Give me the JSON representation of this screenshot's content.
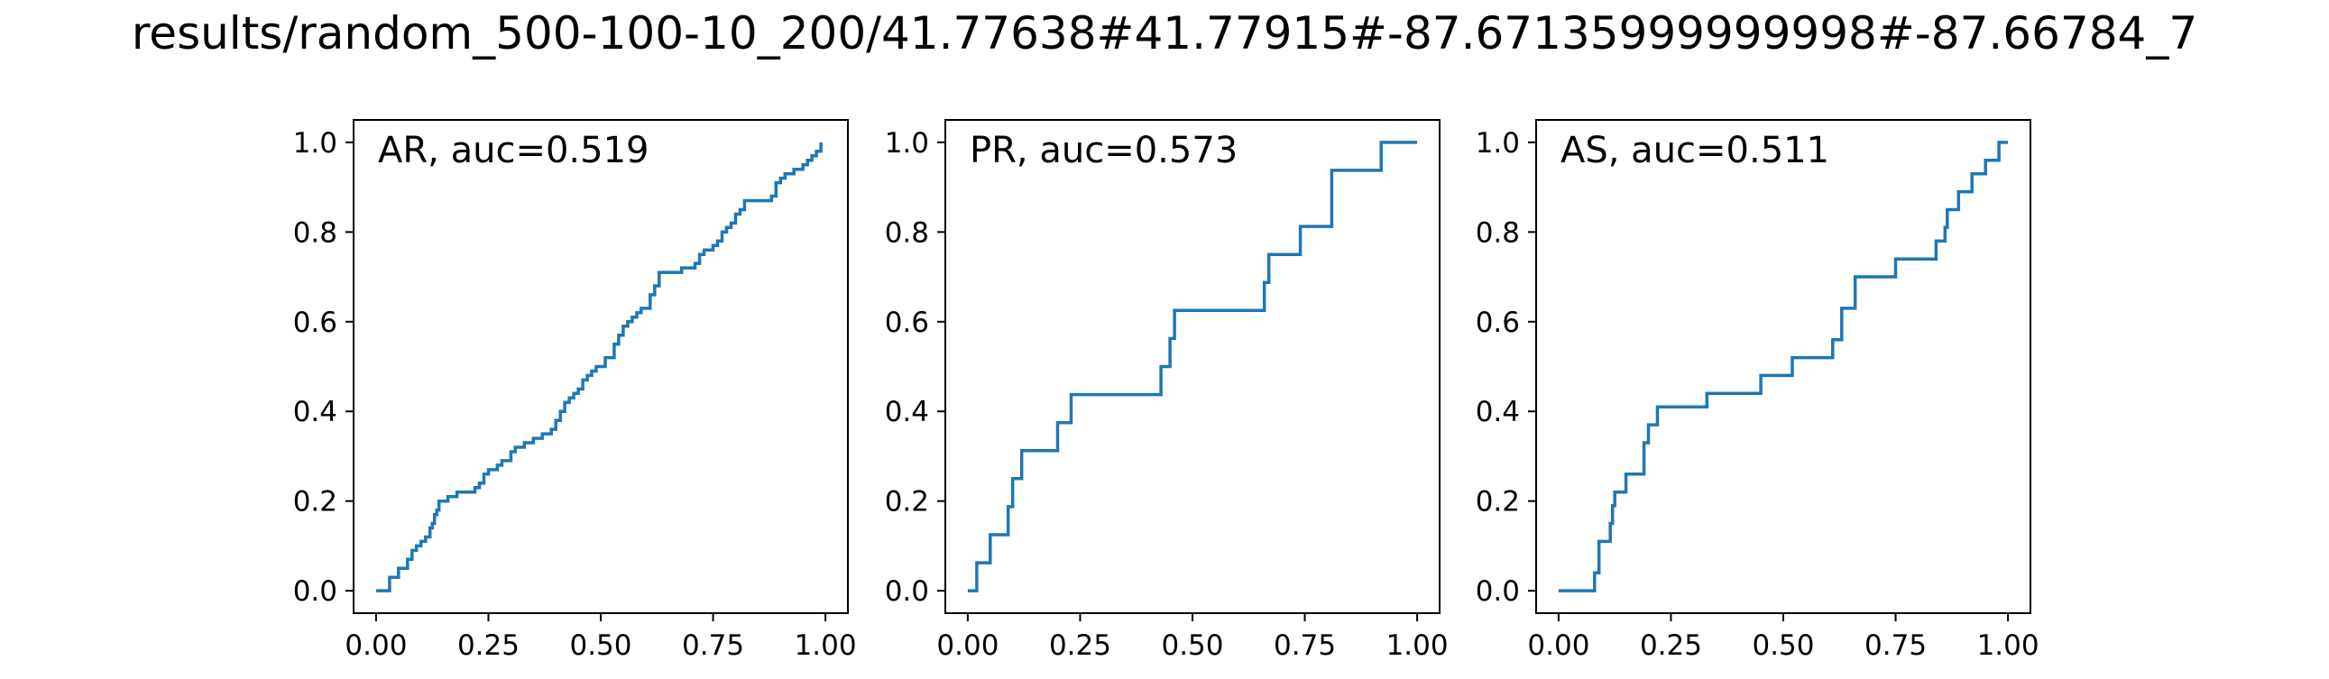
{
  "figure": {
    "suptitle": "results/random_500-100-10_200/41.77638#41.77915#-87.67135999999998#-87.66784_7"
  },
  "colors": {
    "line": "#1f77b4",
    "axes": "#000000"
  },
  "chart_data": [
    {
      "type": "line",
      "title": "AR, auc=0.519",
      "xlabel": "",
      "ylabel": "",
      "xlim": [
        -0.05,
        1.05
      ],
      "ylim": [
        -0.05,
        1.05
      ],
      "xticks": [
        "0.00",
        "0.25",
        "0.50",
        "0.75",
        "1.00"
      ],
      "yticks": [
        "0.0",
        "0.2",
        "0.4",
        "0.6",
        "0.8",
        "1.0"
      ],
      "grid": false,
      "step": true,
      "series": [
        {
          "x": [
            0.0,
            0.03,
            0.04,
            0.05,
            0.06,
            0.07,
            0.08,
            0.09,
            0.1,
            0.11,
            0.12,
            0.125,
            0.13,
            0.135,
            0.14,
            0.16,
            0.17,
            0.18,
            0.2,
            0.22,
            0.23,
            0.24,
            0.25,
            0.27,
            0.28,
            0.3,
            0.31,
            0.33,
            0.35,
            0.37,
            0.39,
            0.4,
            0.41,
            0.42,
            0.43,
            0.44,
            0.45,
            0.46,
            0.47,
            0.48,
            0.49,
            0.51,
            0.53,
            0.54,
            0.55,
            0.56,
            0.57,
            0.58,
            0.59,
            0.61,
            0.62,
            0.63,
            0.64,
            0.68,
            0.71,
            0.72,
            0.73,
            0.75,
            0.76,
            0.77,
            0.78,
            0.79,
            0.8,
            0.81,
            0.82,
            0.88,
            0.89,
            0.9,
            0.91,
            0.93,
            0.95,
            0.96,
            0.97,
            0.98,
            0.99
          ],
          "y": [
            0.0,
            0.03,
            0.03,
            0.05,
            0.05,
            0.07,
            0.09,
            0.1,
            0.11,
            0.12,
            0.14,
            0.15,
            0.17,
            0.18,
            0.2,
            0.21,
            0.21,
            0.22,
            0.22,
            0.23,
            0.24,
            0.26,
            0.27,
            0.28,
            0.29,
            0.31,
            0.32,
            0.33,
            0.34,
            0.35,
            0.36,
            0.38,
            0.4,
            0.42,
            0.43,
            0.44,
            0.45,
            0.47,
            0.48,
            0.49,
            0.5,
            0.52,
            0.55,
            0.57,
            0.59,
            0.6,
            0.61,
            0.62,
            0.63,
            0.66,
            0.68,
            0.71,
            0.71,
            0.72,
            0.73,
            0.75,
            0.76,
            0.77,
            0.78,
            0.8,
            0.81,
            0.82,
            0.84,
            0.85,
            0.87,
            0.88,
            0.91,
            0.92,
            0.93,
            0.94,
            0.95,
            0.96,
            0.97,
            0.98,
            1.0
          ]
        }
      ]
    },
    {
      "type": "line",
      "title": "PR, auc=0.573",
      "xlabel": "",
      "ylabel": "",
      "xlim": [
        -0.05,
        1.05
      ],
      "ylim": [
        -0.05,
        1.05
      ],
      "xticks": [
        "0.00",
        "0.25",
        "0.50",
        "0.75",
        "1.00"
      ],
      "yticks": [
        "0.0",
        "0.2",
        "0.4",
        "0.6",
        "0.8",
        "1.0"
      ],
      "grid": false,
      "step": true,
      "series": [
        {
          "x": [
            0.0,
            0.02,
            0.05,
            0.09,
            0.1,
            0.12,
            0.17,
            0.2,
            0.23,
            0.43,
            0.45,
            0.46,
            0.66,
            0.67,
            0.74,
            0.81,
            0.92,
            1.0
          ],
          "y": [
            0.0,
            0.0625,
            0.125,
            0.1875,
            0.25,
            0.3125,
            0.3125,
            0.375,
            0.4375,
            0.5,
            0.5625,
            0.625,
            0.6875,
            0.75,
            0.8125,
            0.9375,
            1.0,
            1.0
          ]
        }
      ]
    },
    {
      "type": "line",
      "title": "AS, auc=0.511",
      "xlabel": "",
      "ylabel": "",
      "xlim": [
        -0.05,
        1.05
      ],
      "ylim": [
        -0.05,
        1.05
      ],
      "xticks": [
        "0.00",
        "0.25",
        "0.50",
        "0.75",
        "1.00"
      ],
      "yticks": [
        "0.0",
        "0.2",
        "0.4",
        "0.6",
        "0.8",
        "1.0"
      ],
      "grid": false,
      "step": true,
      "series": [
        {
          "x": [
            0.0,
            0.08,
            0.09,
            0.11,
            0.115,
            0.12,
            0.125,
            0.13,
            0.14,
            0.15,
            0.16,
            0.19,
            0.2,
            0.22,
            0.25,
            0.33,
            0.45,
            0.52,
            0.61,
            0.63,
            0.66,
            0.75,
            0.84,
            0.86,
            0.865,
            0.87,
            0.89,
            0.92,
            0.95,
            0.98,
            1.0
          ],
          "y": [
            0.0,
            0.04,
            0.11,
            0.11,
            0.15,
            0.19,
            0.22,
            0.22,
            0.22,
            0.26,
            0.26,
            0.33,
            0.37,
            0.41,
            0.41,
            0.44,
            0.48,
            0.52,
            0.56,
            0.63,
            0.7,
            0.74,
            0.78,
            0.81,
            0.85,
            0.85,
            0.89,
            0.93,
            0.96,
            1.0,
            1.0
          ]
        }
      ]
    }
  ]
}
